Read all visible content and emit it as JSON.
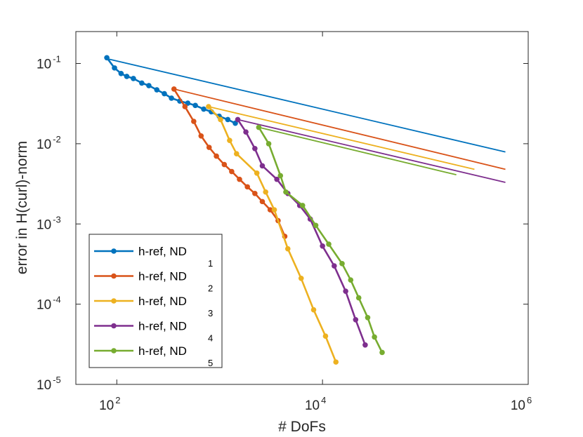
{
  "chart_data": {
    "type": "line",
    "title": "",
    "xlabel": "# DoFs",
    "ylabel": "error in H(curl)-norm",
    "xscale": "log",
    "yscale": "log",
    "xlim": [
      40,
      1000000
    ],
    "ylim": [
      1e-05,
      0.25
    ],
    "x_ticks": [
      {
        "value": 100,
        "base": "10",
        "exp": "2"
      },
      {
        "value": 10000,
        "base": "10",
        "exp": "4"
      },
      {
        "value": 1000000,
        "base": "10",
        "exp": "6"
      }
    ],
    "y_ticks": [
      {
        "value": 0.1,
        "base": "10",
        "exp": "-1"
      },
      {
        "value": 0.01,
        "base": "10",
        "exp": "-2"
      },
      {
        "value": 0.001,
        "base": "10",
        "exp": "-3"
      },
      {
        "value": 0.0001,
        "base": "10",
        "exp": "-4"
      },
      {
        "value": 1e-05,
        "base": "10",
        "exp": "-5"
      }
    ],
    "grid": false,
    "box": true,
    "legend_position": "bottom-left",
    "series": [
      {
        "name": "h-ref, ND",
        "subscript": "1",
        "color": "#0072BD",
        "x": [
          80,
          95,
          110,
          125,
          145,
          175,
          205,
          245,
          290,
          340,
          410,
          490,
          580,
          700,
          830,
          990,
          1200,
          1420
        ],
        "y": [
          0.118,
          0.088,
          0.075,
          0.069,
          0.065,
          0.057,
          0.053,
          0.047,
          0.042,
          0.037,
          0.034,
          0.032,
          0.03,
          0.027,
          0.025,
          0.022,
          0.02,
          0.018
        ]
      },
      {
        "name": "h-ref, ND",
        "subscript": "2",
        "color": "#D95319",
        "x": [
          360,
          460,
          560,
          660,
          790,
          930,
          1110,
          1310,
          1560,
          1860,
          2200,
          2600,
          3100,
          3700,
          4300
        ],
        "y": [
          0.048,
          0.029,
          0.019,
          0.0125,
          0.009,
          0.007,
          0.0055,
          0.0045,
          0.0036,
          0.0029,
          0.0024,
          0.0019,
          0.0015,
          0.0011,
          0.0007
        ]
      },
      {
        "name": "h-ref, ND",
        "subscript": "3",
        "color": "#EDB120",
        "x": [
          780,
          1020,
          1250,
          1460,
          2300,
          2800,
          3400,
          4600,
          6200,
          8200,
          10700,
          13500
        ],
        "y": [
          0.029,
          0.02,
          0.011,
          0.0075,
          0.0043,
          0.0025,
          0.0015,
          0.00049,
          0.00021,
          8.5e-05,
          4e-05,
          1.9e-05
        ]
      },
      {
        "name": "h-ref, ND",
        "subscript": "4",
        "color": "#7E2F8E",
        "x": [
          1500,
          1800,
          2200,
          2600,
          3600,
          4600,
          6000,
          7600,
          10000,
          13000,
          16800,
          21000,
          26000
        ],
        "y": [
          0.02,
          0.014,
          0.0087,
          0.0053,
          0.0036,
          0.0024,
          0.0017,
          0.00115,
          0.00053,
          0.0003,
          0.000145,
          6.4e-05,
          3.1e-05
        ]
      },
      {
        "name": "h-ref, ND",
        "subscript": "5",
        "color": "#77AC30",
        "x": [
          2400,
          3000,
          3900,
          4400,
          6400,
          8600,
          11500,
          15500,
          18800,
          22500,
          27500,
          32000,
          38000
        ],
        "y": [
          0.016,
          0.01,
          0.004,
          0.0025,
          0.0017,
          0.00096,
          0.00056,
          0.00032,
          0.0002,
          0.00012,
          6.8e-05,
          3.9e-05,
          2.5e-05
        ]
      }
    ],
    "reference_lines": [
      {
        "color": "#0072BD",
        "x": [
          80,
          600000
        ],
        "y": [
          0.115,
          0.0079
        ]
      },
      {
        "color": "#D95319",
        "x": [
          360,
          600000
        ],
        "y": [
          0.048,
          0.0048
        ]
      },
      {
        "color": "#EDB120",
        "x": [
          780,
          300000
        ],
        "y": [
          0.029,
          0.0048
        ]
      },
      {
        "color": "#7E2F8E",
        "x": [
          1500,
          600000
        ],
        "y": [
          0.02,
          0.0033
        ]
      },
      {
        "color": "#77AC30",
        "x": [
          2400,
          200000
        ],
        "y": [
          0.016,
          0.0041
        ]
      }
    ]
  }
}
